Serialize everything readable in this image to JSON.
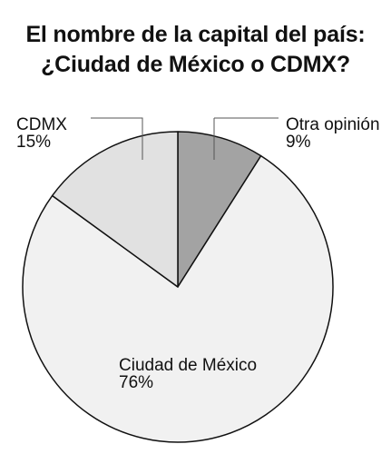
{
  "title": {
    "line1": "El nombre de la capital del país:",
    "line2": "¿Ciudad de México o CDMX?"
  },
  "chart_data": {
    "type": "pie",
    "slices": [
      {
        "label": "Otra opinión",
        "value": 9,
        "value_label": "9%",
        "color": "#a3a3a3"
      },
      {
        "label": "Ciudad de México",
        "value": 76,
        "value_label": "76%",
        "color": "#f1f1f1"
      },
      {
        "label": "CDMX",
        "value": 15,
        "value_label": "15%",
        "color": "#e1e1e1"
      }
    ]
  }
}
